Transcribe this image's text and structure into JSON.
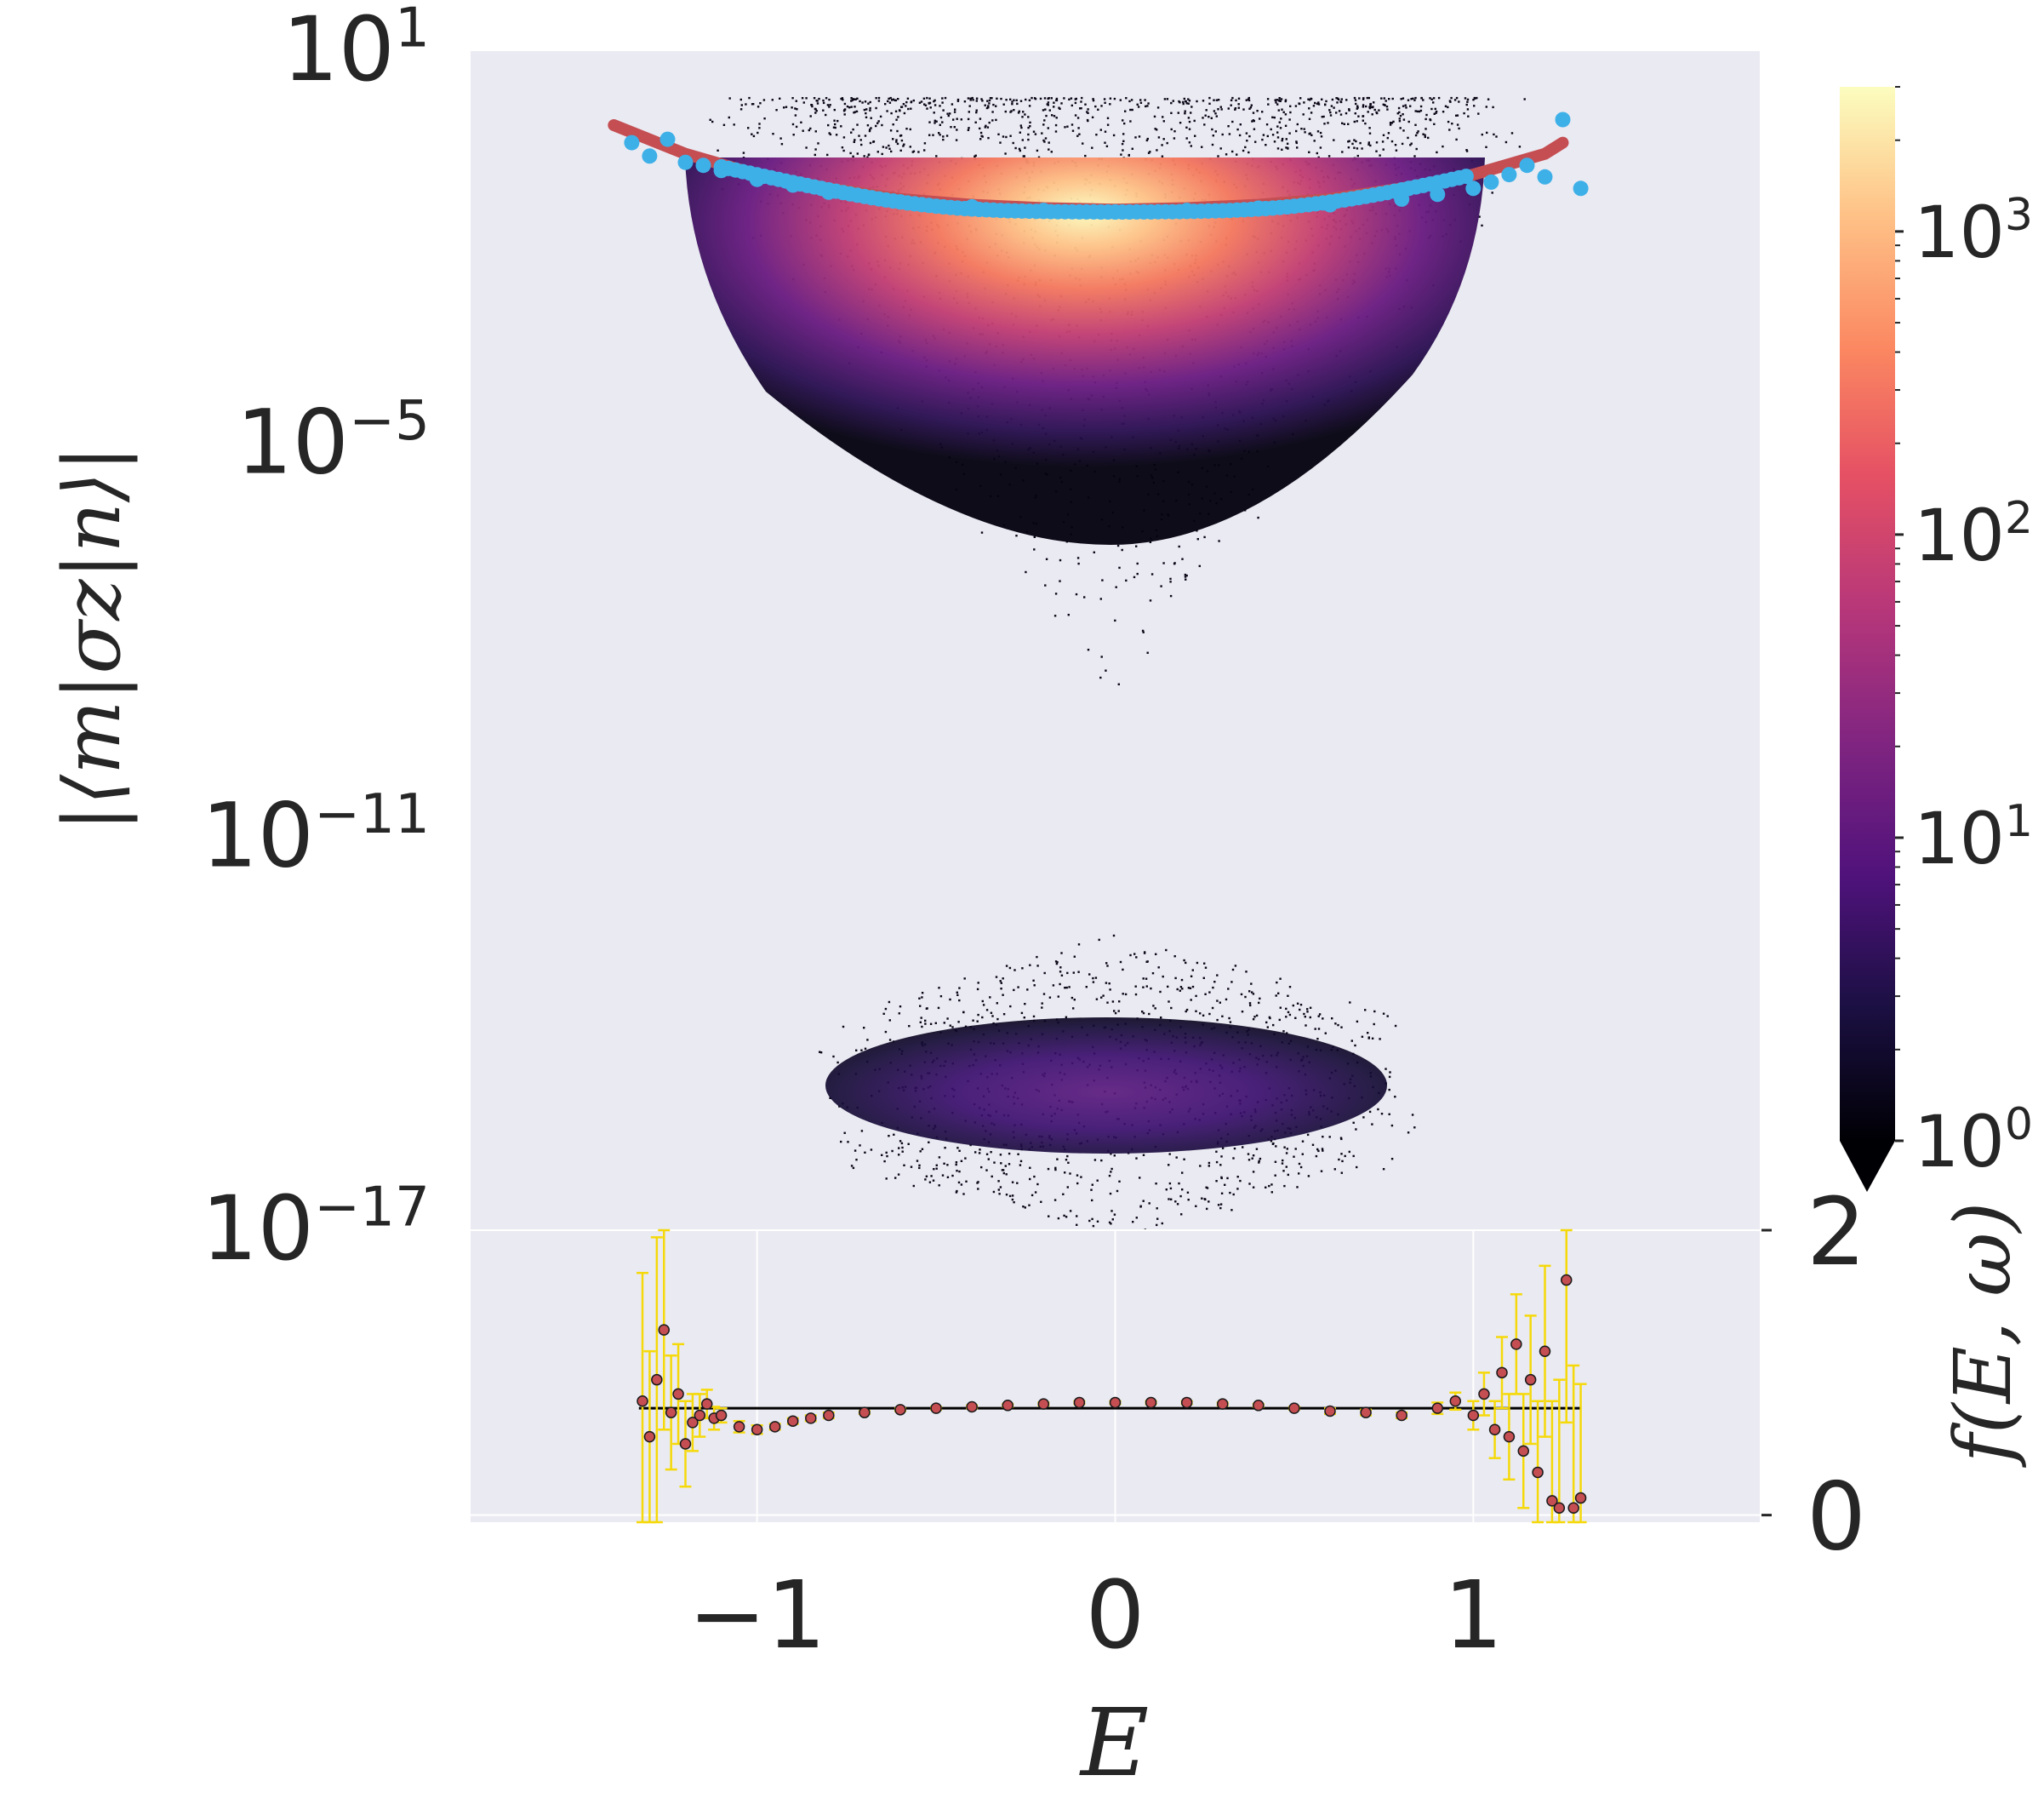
{
  "chart_data": [
    {
      "type": "heatmap",
      "title": "",
      "ylabel": "|⟨m|σz|n⟩|",
      "yscale": "log",
      "ylim": [
        1e-17,
        10
      ],
      "xlim": [
        -1.8,
        1.8
      ],
      "yticks": [
        {
          "base": "10",
          "exp": "1"
        },
        {
          "base": "10",
          "exp": "−5"
        },
        {
          "base": "10",
          "exp": "−11"
        },
        {
          "base": "10",
          "exp": "−17"
        }
      ],
      "grid": false,
      "background": "#eaeaf2",
      "density_clusters": [
        {
          "center_x": 0.0,
          "center_log10_y": -1.0,
          "half_width_x": 1.15,
          "log10_y_min": -9.0,
          "log10_y_max": 0.3,
          "peak_count": 3000
        },
        {
          "center_x": 0.0,
          "center_log10_y": -14.8,
          "half_width_x": 0.85,
          "log10_y_min": -17.0,
          "log10_y_max": -12.3,
          "peak_count": 15
        }
      ],
      "series": [
        {
          "color": "#c44e52",
          "kind": "line",
          "x": [
            -1.4,
            -1.2,
            -1.0,
            -0.8,
            -0.6,
            -0.4,
            -0.2,
            0.0,
            0.2,
            0.4,
            0.6,
            0.8,
            1.0,
            1.2,
            1.25
          ],
          "y": [
            0.74,
            0.27,
            0.13,
            0.08,
            0.055,
            0.045,
            0.04,
            0.038,
            0.04,
            0.045,
            0.055,
            0.08,
            0.13,
            0.27,
            0.4
          ]
        },
        {
          "color": "#3eb0e8",
          "kind": "scatter",
          "x": [
            -1.35,
            -1.3,
            -1.25,
            -1.2,
            -1.15,
            -1.1,
            -1.0,
            -0.9,
            -0.8,
            -0.6,
            -0.4,
            -0.2,
            0.0,
            0.2,
            0.4,
            0.6,
            0.8,
            0.9,
            1.0,
            1.05,
            1.1,
            1.15,
            1.2,
            1.25,
            1.3
          ],
          "y": [
            0.4,
            0.25,
            0.45,
            0.2,
            0.18,
            0.15,
            0.11,
            0.09,
            0.07,
            0.05,
            0.042,
            0.037,
            0.035,
            0.037,
            0.04,
            0.045,
            0.055,
            0.065,
            0.08,
            0.1,
            0.13,
            0.18,
            0.12,
            0.9,
            0.08
          ]
        }
      ]
    },
    {
      "type": "colorbar",
      "scale": "log",
      "range": [
        1,
        3000
      ],
      "colormap": "magma",
      "extend": "min",
      "ticks": [
        {
          "base": "10",
          "exp": "0"
        },
        {
          "base": "10",
          "exp": "1"
        },
        {
          "base": "10",
          "exp": "2"
        },
        {
          "base": "10",
          "exp": "3"
        }
      ]
    },
    {
      "type": "scatter",
      "xlabel": "E",
      "ylabel": "f(E, ω)",
      "xlim": [
        -1.8,
        1.8
      ],
      "ylim": [
        -0.05,
        2.0
      ],
      "xticks": [
        "−1",
        "0",
        "1"
      ],
      "yticks": [
        "0",
        "2"
      ],
      "grid": true,
      "reference_line": {
        "y": 0.75,
        "x_range": [
          -1.33,
          1.3
        ],
        "color": "#000000"
      },
      "marker_color": "#c44e52",
      "errorbar_color": "#f5d90a",
      "x": [
        -1.32,
        -1.3,
        -1.28,
        -1.26,
        -1.24,
        -1.22,
        -1.2,
        -1.18,
        -1.16,
        -1.14,
        -1.12,
        -1.1,
        -1.05,
        -1.0,
        -0.95,
        -0.9,
        -0.85,
        -0.8,
        -0.7,
        -0.6,
        -0.5,
        -0.4,
        -0.3,
        -0.2,
        -0.1,
        0.0,
        0.1,
        0.2,
        0.3,
        0.4,
        0.5,
        0.6,
        0.7,
        0.8,
        0.9,
        0.95,
        1.0,
        1.03,
        1.06,
        1.08,
        1.1,
        1.12,
        1.14,
        1.16,
        1.18,
        1.2,
        1.22,
        1.24,
        1.26,
        1.28,
        1.3
      ],
      "y": [
        0.8,
        0.55,
        0.95,
        1.3,
        0.72,
        0.85,
        0.5,
        0.65,
        0.7,
        0.78,
        0.68,
        0.7,
        0.62,
        0.6,
        0.62,
        0.66,
        0.68,
        0.7,
        0.72,
        0.74,
        0.75,
        0.76,
        0.77,
        0.78,
        0.79,
        0.79,
        0.79,
        0.79,
        0.78,
        0.77,
        0.75,
        0.73,
        0.72,
        0.7,
        0.75,
        0.8,
        0.7,
        0.85,
        0.6,
        1.0,
        0.55,
        1.2,
        0.45,
        0.95,
        0.3,
        1.15,
        0.1,
        0.05,
        1.65,
        0.05,
        0.12
      ],
      "yerr": [
        0.9,
        0.6,
        1.0,
        0.7,
        0.4,
        0.35,
        0.3,
        0.2,
        0.15,
        0.1,
        0.08,
        0.05,
        0.04,
        0.03,
        0.02,
        0.02,
        0.02,
        0.02,
        0.01,
        0.01,
        0.01,
        0.01,
        0.01,
        0.01,
        0.01,
        0.01,
        0.01,
        0.01,
        0.01,
        0.01,
        0.01,
        0.02,
        0.02,
        0.02,
        0.04,
        0.06,
        0.1,
        0.15,
        0.2,
        0.25,
        0.3,
        0.35,
        0.4,
        0.45,
        0.5,
        0.6,
        0.7,
        0.9,
        1.0,
        1.0,
        0.8
      ]
    }
  ]
}
